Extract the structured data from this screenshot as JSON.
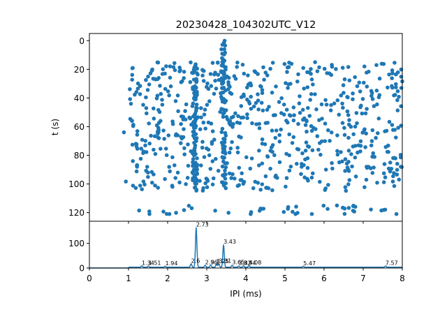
{
  "chart_data": [
    {
      "id": "raster",
      "type": "scatter",
      "title": "20230428_104302UTC_V12",
      "xlabel": "",
      "ylabel": "t (s)",
      "xlim": [
        0,
        8
      ],
      "ylim": [
        126,
        -5
      ],
      "y_inverted": true,
      "yticks": [
        0,
        20,
        40,
        60,
        80,
        100,
        120
      ],
      "xticks": [
        0,
        1,
        2,
        3,
        4,
        5,
        6,
        7,
        8
      ],
      "x_tick_labels_shown": false,
      "marker": "circle",
      "color": "#1f77b4",
      "point_count": 900,
      "bands": [
        {
          "x": 1.05,
          "y": 70
        },
        {
          "x": 1.35,
          "y": 65
        },
        {
          "x": 1.8,
          "y": 58
        },
        {
          "x": 2.5,
          "y": 55
        },
        {
          "x": 2.73,
          "y": 60
        },
        {
          "x": 2.9,
          "y": 60
        },
        {
          "x": 3.43,
          "y": 45
        },
        {
          "x": 4.0,
          "y": 58
        },
        {
          "x": 5.0,
          "y": 55
        },
        {
          "x": 6.5,
          "y": 50
        },
        {
          "x": 7.2,
          "y": 52
        },
        {
          "x": 7.8,
          "y": 60
        }
      ]
    },
    {
      "id": "histogram",
      "type": "line",
      "title": "",
      "xlabel": "IPI (ms)",
      "ylabel": "",
      "xlim": [
        0,
        8
      ],
      "ylim": [
        0,
        190
      ],
      "xticks": [
        0,
        1,
        2,
        3,
        4,
        5,
        6,
        7,
        8
      ],
      "yticks": [
        0,
        100
      ],
      "color": "#1f77b4",
      "baseline": 3,
      "peaks": [
        {
          "x": 1.34,
          "y": 6,
          "label": "1.34"
        },
        {
          "x": 1.51,
          "y": 5,
          "label": "1.51"
        },
        {
          "x": 1.94,
          "y": 4,
          "label": "1.94"
        },
        {
          "x": 2.6,
          "y": 14,
          "label": "2.6"
        },
        {
          "x": 2.73,
          "y": 162,
          "label": "2.73"
        },
        {
          "x": 2.96,
          "y": 8,
          "label": "2.96"
        },
        {
          "x": 3.1,
          "y": 9,
          "label": "3.1"
        },
        {
          "x": 3.25,
          "y": 13,
          "label": "3.25"
        },
        {
          "x": 3.31,
          "y": 14,
          "label": "3.31"
        },
        {
          "x": 3.43,
          "y": 92,
          "label": "3.43"
        },
        {
          "x": 3.65,
          "y": 8,
          "label": "3.65"
        },
        {
          "x": 3.82,
          "y": 5,
          "label": "3.82"
        },
        {
          "x": 3.94,
          "y": 6,
          "label": "3.94"
        },
        {
          "x": 4.08,
          "y": 7,
          "label": "4.08"
        },
        {
          "x": 5.47,
          "y": 4,
          "label": "5.47"
        },
        {
          "x": 7.57,
          "y": 5,
          "label": "7.57"
        }
      ]
    }
  ]
}
